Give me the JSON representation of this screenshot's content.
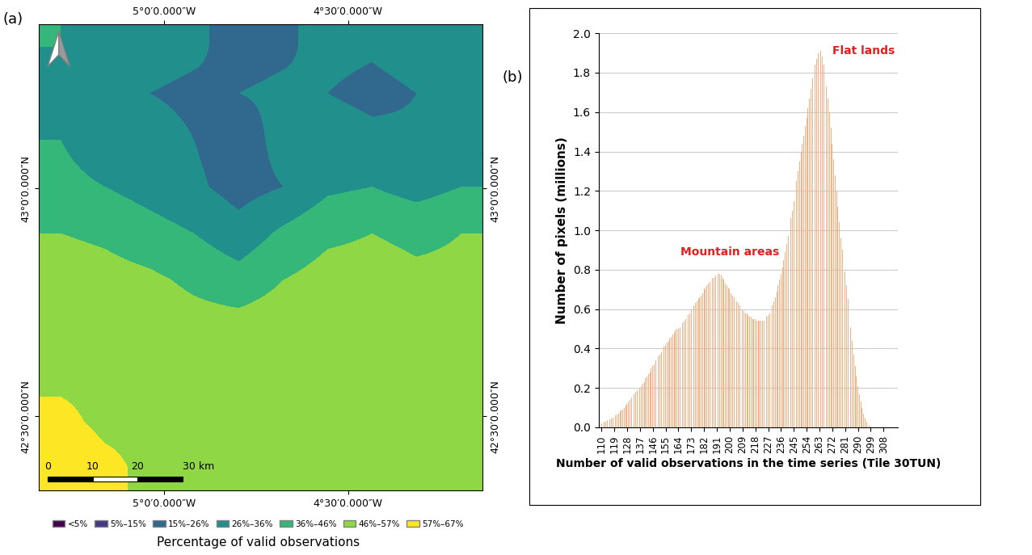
{
  "chart_data": [
    {
      "type": "heatmap",
      "panel_label": "(a)",
      "xlim": [
        -5.341,
        -4.134
      ],
      "ylim": [
        42.337,
        43.36
      ],
      "xticks": [
        {
          "value": -5.0,
          "label": "5°0′0.000″W"
        },
        {
          "value": -4.5,
          "label": "4°30′0.000″W"
        }
      ],
      "yticks": [
        {
          "value": 42.5,
          "label": "42°30′0.000″N"
        },
        {
          "value": 43.0,
          "label": "43°0′0.000″N"
        }
      ],
      "cells": [
        [
          36,
          34,
          30,
          28,
          22,
          24,
          30,
          28,
          32,
          34
        ],
        [
          34,
          32,
          26,
          24,
          26,
          28,
          26,
          22,
          26,
          32
        ],
        [
          36,
          28,
          30,
          26,
          20,
          30,
          34,
          30,
          28,
          34
        ],
        [
          40,
          36,
          32,
          28,
          22,
          26,
          34,
          36,
          32,
          36
        ],
        [
          46,
          44,
          40,
          36,
          30,
          38,
          44,
          46,
          44,
          46
        ],
        [
          52,
          50,
          48,
          44,
          40,
          46,
          50,
          50,
          48,
          48
        ],
        [
          54,
          54,
          52,
          50,
          50,
          52,
          52,
          50,
          50,
          50
        ],
        [
          56,
          56,
          54,
          54,
          52,
          54,
          54,
          52,
          52,
          50
        ],
        [
          58,
          56,
          56,
          54,
          54,
          54,
          52,
          52,
          52,
          50
        ],
        [
          60,
          58,
          56,
          56,
          54,
          54,
          52,
          52,
          50,
          50
        ]
      ],
      "class_bounds": [
        0,
        5,
        15,
        26,
        36,
        46,
        57,
        67
      ],
      "class_labels": [
        "<5%",
        "5%–15%",
        "15%–26%",
        "26%–36%",
        "36%–46%",
        "46%–57%",
        "57%–67%"
      ],
      "colors": [
        "#440154",
        "#443983",
        "#31688e",
        "#21908d",
        "#35b779",
        "#8fd744",
        "#fde725"
      ],
      "colorbar_title": "Percentage of valid observations",
      "scale_bar": {
        "values": [
          0,
          10,
          20,
          30
        ],
        "labels": [
          "0",
          "10",
          "20",
          "30 km"
        ]
      }
    },
    {
      "type": "bar",
      "panel_label": "(b)",
      "color": "#f4b183",
      "grid": true,
      "x_label": "Number of valid observations in the time series (Tile 30TUN)",
      "y_label": "Number of pixels (millions)",
      "x": [
        110,
        111,
        112,
        113,
        114,
        115,
        116,
        117,
        118,
        119,
        120,
        121,
        122,
        123,
        124,
        125,
        126,
        127,
        128,
        129,
        130,
        131,
        132,
        133,
        134,
        135,
        136,
        137,
        138,
        139,
        140,
        141,
        142,
        143,
        144,
        145,
        146,
        147,
        148,
        149,
        150,
        151,
        152,
        153,
        154,
        155,
        156,
        157,
        158,
        159,
        160,
        161,
        162,
        163,
        164,
        165,
        166,
        167,
        168,
        169,
        170,
        171,
        172,
        173,
        174,
        175,
        176,
        177,
        178,
        179,
        180,
        181,
        182,
        183,
        184,
        185,
        186,
        187,
        188,
        189,
        190,
        191,
        192,
        193,
        194,
        195,
        196,
        197,
        198,
        199,
        200,
        201,
        202,
        203,
        204,
        205,
        206,
        207,
        208,
        209,
        210,
        211,
        212,
        213,
        214,
        215,
        216,
        217,
        218,
        219,
        220,
        221,
        222,
        223,
        224,
        225,
        226,
        227,
        228,
        229,
        230,
        231,
        232,
        233,
        234,
        235,
        236,
        237,
        238,
        239,
        240,
        241,
        242,
        243,
        244,
        245,
        246,
        247,
        248,
        249,
        250,
        251,
        252,
        253,
        254,
        255,
        256,
        257,
        258,
        259,
        260,
        261,
        262,
        263,
        264,
        265,
        266,
        267,
        268,
        269,
        270,
        271,
        272,
        273,
        274,
        275,
        276,
        277,
        278,
        279,
        280,
        281,
        282,
        283,
        284,
        285,
        286,
        287,
        288,
        289,
        290,
        291,
        292,
        293,
        294,
        295,
        296,
        297,
        298,
        299
      ],
      "values": [
        0.02,
        0.025,
        0.03,
        0.03,
        0.035,
        0.04,
        0.04,
        0.045,
        0.05,
        0.05,
        0.06,
        0.065,
        0.07,
        0.08,
        0.085,
        0.09,
        0.1,
        0.11,
        0.12,
        0.13,
        0.14,
        0.15,
        0.16,
        0.17,
        0.18,
        0.19,
        0.2,
        0.2,
        0.21,
        0.22,
        0.23,
        0.25,
        0.26,
        0.27,
        0.28,
        0.3,
        0.31,
        0.32,
        0.34,
        0.35,
        0.36,
        0.37,
        0.38,
        0.4,
        0.41,
        0.42,
        0.43,
        0.44,
        0.45,
        0.46,
        0.47,
        0.48,
        0.49,
        0.5,
        0.5,
        0.51,
        0.52,
        0.53,
        0.54,
        0.55,
        0.56,
        0.57,
        0.58,
        0.6,
        0.61,
        0.62,
        0.63,
        0.64,
        0.65,
        0.66,
        0.67,
        0.68,
        0.7,
        0.71,
        0.72,
        0.73,
        0.74,
        0.75,
        0.76,
        0.76,
        0.77,
        0.77,
        0.78,
        0.78,
        0.77,
        0.76,
        0.75,
        0.73,
        0.72,
        0.71,
        0.7,
        0.68,
        0.67,
        0.66,
        0.65,
        0.64,
        0.63,
        0.62,
        0.61,
        0.6,
        0.59,
        0.58,
        0.58,
        0.57,
        0.56,
        0.56,
        0.55,
        0.55,
        0.55,
        0.54,
        0.54,
        0.54,
        0.54,
        0.54,
        0.54,
        0.55,
        0.56,
        0.57,
        0.58,
        0.6,
        0.62,
        0.64,
        0.66,
        0.69,
        0.72,
        0.75,
        0.78,
        0.81,
        0.85,
        0.89,
        0.93,
        0.97,
        1.02,
        1.06,
        1.1,
        1.15,
        1.2,
        1.25,
        1.3,
        1.35,
        1.4,
        1.44,
        1.48,
        1.53,
        1.57,
        1.62,
        1.67,
        1.72,
        1.77,
        1.8,
        1.84,
        1.87,
        1.9,
        1.93,
        1.91,
        1.88,
        1.84,
        1.79,
        1.73,
        1.67,
        1.6,
        1.52,
        1.44,
        1.36,
        1.28,
        1.2,
        1.12,
        1.04,
        0.96,
        0.9,
        0.85,
        0.79,
        0.72,
        0.65,
        0.58,
        0.51,
        0.44,
        0.37,
        0.31,
        0.26,
        0.21,
        0.17,
        0.13,
        0.1,
        0.07,
        0.05,
        0.03,
        0.02,
        0.01,
        0.005
      ],
      "xlim": [
        108,
        318
      ],
      "xticks": [
        110,
        119,
        128,
        137,
        146,
        155,
        164,
        173,
        182,
        191,
        200,
        209,
        218,
        227,
        236,
        245,
        254,
        263,
        272,
        281,
        290,
        299,
        308
      ],
      "ylim": [
        0,
        2.0
      ],
      "yticks": [
        {
          "value": 0,
          "label": "0.0"
        },
        {
          "value": 0.2,
          "label": "0.2"
        },
        {
          "value": 0.4,
          "label": "0.4"
        },
        {
          "value": 0.6,
          "label": "0.6"
        },
        {
          "value": 0.8,
          "label": "0.8"
        },
        {
          "value": 1.0,
          "label": "1.0"
        },
        {
          "value": 1.2,
          "label": "1.2"
        },
        {
          "value": 1.4,
          "label": "1.4"
        },
        {
          "value": 1.6,
          "label": "1.6"
        },
        {
          "value": 1.8,
          "label": "1.8"
        },
        {
          "value": 2.0,
          "label": "2.0"
        }
      ],
      "annotations": [
        {
          "text": "Mountain areas",
          "x": 200,
          "y": 0.86,
          "color": "#e02020"
        },
        {
          "text": "Flat lands",
          "x": 272,
          "y": 1.88,
          "color": "#e02020"
        }
      ]
    }
  ]
}
